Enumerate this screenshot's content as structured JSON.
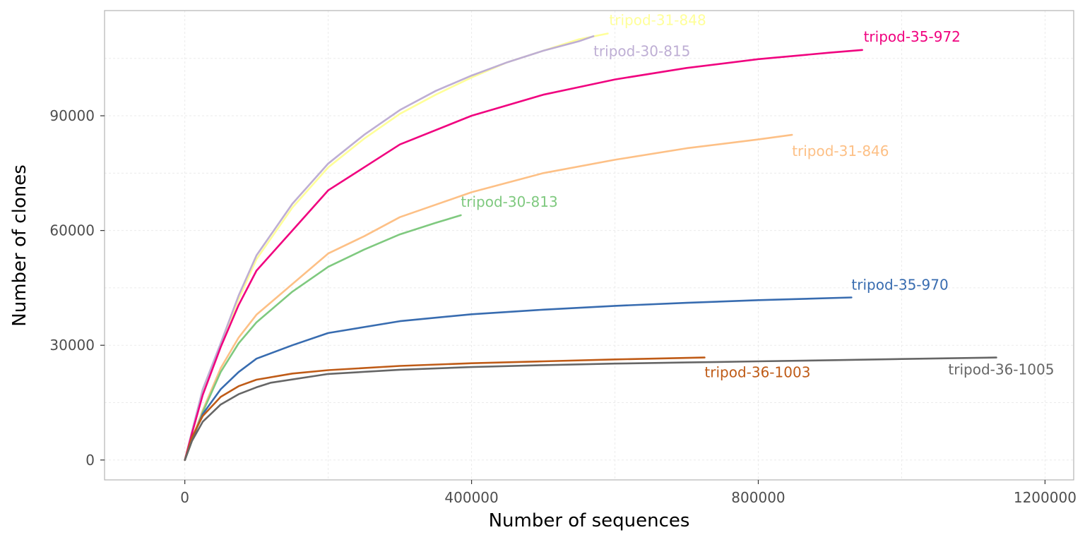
{
  "chart_data": {
    "type": "line",
    "xlabel": "Number of sequences",
    "ylabel": "Number of clones",
    "xlim": [
      -112000,
      1240000
    ],
    "ylim": [
      -5200,
      117500
    ],
    "x_ticks": [
      0,
      400000,
      800000,
      1200000
    ],
    "x_tick_labels": [
      "0",
      "400000",
      "800000",
      "1200000"
    ],
    "y_ticks": [
      0,
      30000,
      60000,
      90000
    ],
    "y_tick_labels": [
      "0",
      "30000",
      "60000",
      "90000"
    ],
    "grid": true,
    "legend": "none (direct labels at line ends)",
    "series": [
      {
        "name": "tripod-31-848",
        "color": "#FFFF99",
        "x": [
          0,
          10000,
          25000,
          50000,
          75000,
          100000,
          150000,
          200000,
          250000,
          300000,
          350000,
          400000,
          450000,
          500000,
          550000,
          590000
        ],
        "y": [
          0,
          7500,
          18000,
          30000,
          42000,
          52500,
          66000,
          76500,
          84000,
          90500,
          95500,
          100000,
          104000,
          107000,
          110000,
          111500
        ]
      },
      {
        "name": "tripod-30-815",
        "color": "#BEAED4",
        "x": [
          0,
          10000,
          25000,
          50000,
          75000,
          100000,
          150000,
          200000,
          250000,
          300000,
          350000,
          400000,
          450000,
          500000,
          550000,
          570000
        ],
        "y": [
          0,
          7500,
          18500,
          30500,
          43000,
          53500,
          67000,
          77500,
          85000,
          91500,
          96500,
          100500,
          104000,
          107000,
          109500,
          110800
        ]
      },
      {
        "name": "tripod-35-972",
        "color": "#F0027F",
        "x": [
          0,
          10000,
          25000,
          50000,
          75000,
          100000,
          150000,
          200000,
          250000,
          300000,
          400000,
          500000,
          600000,
          700000,
          800000,
          900000,
          945000
        ],
        "y": [
          0,
          7000,
          17000,
          29500,
          40500,
          49500,
          60000,
          70500,
          76500,
          82500,
          90000,
          95500,
          99500,
          102500,
          104800,
          106500,
          107200
        ]
      },
      {
        "name": "tripod-31-846",
        "color": "#FDC086",
        "x": [
          0,
          10000,
          25000,
          50000,
          75000,
          100000,
          150000,
          200000,
          250000,
          300000,
          400000,
          500000,
          600000,
          700000,
          800000,
          847000
        ],
        "y": [
          0,
          5500,
          13000,
          24000,
          32000,
          38000,
          46000,
          54000,
          58500,
          63500,
          70000,
          75000,
          78500,
          81500,
          83800,
          85000
        ]
      },
      {
        "name": "tripod-30-813",
        "color": "#7FC97F",
        "x": [
          0,
          10000,
          25000,
          50000,
          75000,
          100000,
          150000,
          200000,
          250000,
          300000,
          350000,
          385000
        ],
        "y": [
          0,
          5000,
          12500,
          23000,
          30500,
          36000,
          44000,
          50500,
          55000,
          59000,
          62000,
          64000
        ]
      },
      {
        "name": "tripod-35-970",
        "color": "#386CB0",
        "x": [
          0,
          10000,
          25000,
          50000,
          75000,
          100000,
          150000,
          200000,
          300000,
          400000,
          500000,
          600000,
          700000,
          800000,
          930000
        ],
        "y": [
          0,
          5500,
          12000,
          18500,
          23000,
          26500,
          30000,
          33200,
          36300,
          38100,
          39300,
          40300,
          41100,
          41800,
          42500
        ]
      },
      {
        "name": "tripod-36-1003",
        "color": "#BF5B17",
        "x": [
          0,
          10000,
          25000,
          50000,
          75000,
          100000,
          150000,
          200000,
          300000,
          400000,
          500000,
          600000,
          725000
        ],
        "y": [
          0,
          6000,
          11500,
          16500,
          19300,
          21000,
          22600,
          23500,
          24600,
          25300,
          25800,
          26300,
          26800
        ]
      },
      {
        "name": "tripod-36-1005",
        "color": "#666666",
        "x": [
          0,
          10000,
          25000,
          50000,
          75000,
          100000,
          120000,
          200000,
          300000,
          400000,
          500000,
          600000,
          700000,
          800000,
          900000,
          1000000,
          1132000
        ],
        "y": [
          0,
          5000,
          10000,
          14500,
          17200,
          19000,
          20200,
          22500,
          23600,
          24300,
          24800,
          25200,
          25500,
          25800,
          26100,
          26400,
          26800
        ]
      }
    ]
  }
}
